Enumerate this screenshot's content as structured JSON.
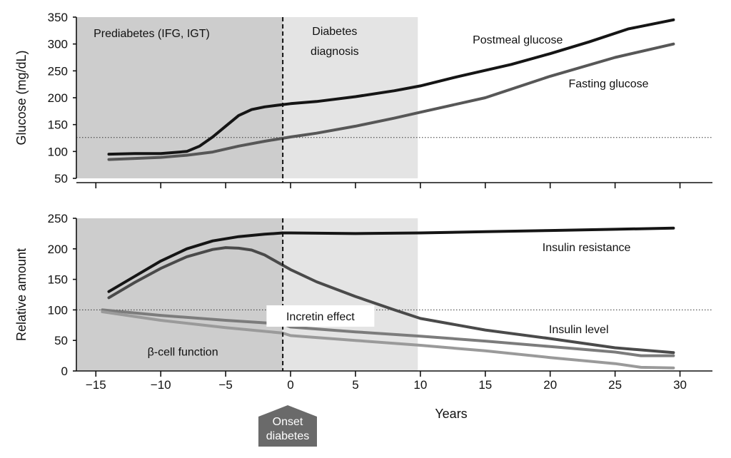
{
  "chart_data": [
    {
      "type": "line",
      "ylabel": "Glucose (mg/dL)",
      "xlabel": "",
      "xlim": [
        -16.5,
        32.5
      ],
      "ylim": [
        50,
        350
      ],
      "y_ticks": [
        50,
        100,
        150,
        200,
        250,
        300,
        350
      ],
      "x_ticks": [
        -15,
        -10,
        -5,
        0,
        5,
        10,
        15,
        20,
        25,
        30
      ],
      "threshold": 126,
      "regions": [
        {
          "x_from": -16.5,
          "x_to": -0.6,
          "color": "#cdcdcd",
          "label_lines": [
            "Prediabetes (IFG, IGT)"
          ],
          "label_x": -10.7,
          "label_y": 313
        },
        {
          "x_from": -0.6,
          "x_to": 9.8,
          "color": "#e4e4e4",
          "label_lines": [
            "Diabetes",
            "diagnosis"
          ],
          "label_x": 3.4,
          "label_y": 317
        }
      ],
      "series": [
        {
          "name": "Postmeal glucose",
          "color": "#151515",
          "x": [
            -14,
            -12,
            -10,
            -8,
            -7,
            -6,
            -5,
            -4,
            -3,
            -2,
            -1,
            0,
            2,
            5,
            8,
            10,
            13,
            17,
            20,
            23,
            26,
            29.5
          ],
          "y": [
            95,
            96,
            96,
            100,
            110,
            127,
            147,
            167,
            178,
            183,
            186,
            189,
            193,
            202,
            213,
            222,
            240,
            262,
            282,
            304,
            328,
            345
          ]
        },
        {
          "name": "Fasting glucose",
          "color": "#575757",
          "x": [
            -14,
            -12,
            -10,
            -8,
            -6,
            -4,
            -2,
            0,
            2,
            5,
            8,
            10,
            15,
            20,
            25,
            29.5
          ],
          "y": [
            85,
            87,
            89,
            93,
            99,
            110,
            119,
            127,
            134,
            147,
            162,
            173,
            200,
            240,
            275,
            300
          ]
        }
      ],
      "annotations": [
        {
          "text": "Postmeal glucose",
          "x": 17.5,
          "y": 309
        },
        {
          "text": "Fasting glucose",
          "x": 24.5,
          "y": 227
        }
      ]
    },
    {
      "type": "line",
      "ylabel": "Relative amount",
      "xlabel": "Years",
      "xlim": [
        -16.5,
        32.5
      ],
      "ylim": [
        0,
        250
      ],
      "y_ticks": [
        0,
        50,
        100,
        150,
        200,
        250
      ],
      "x_ticks": [
        -15,
        -10,
        -5,
        0,
        5,
        10,
        15,
        20,
        25,
        30
      ],
      "threshold": 100,
      "regions": [
        {
          "x_from": -16.5,
          "x_to": -0.6,
          "color": "#cdcdcd"
        },
        {
          "x_from": -0.6,
          "x_to": 9.8,
          "color": "#e4e4e4"
        }
      ],
      "series": [
        {
          "name": "Insulin resistance",
          "color": "#151515",
          "x": [
            -14,
            -12,
            -10,
            -8,
            -6,
            -4,
            -2,
            -0.6,
            0,
            5,
            10,
            15,
            20,
            25,
            29.5
          ],
          "y": [
            130,
            155,
            180,
            200,
            213,
            220,
            224,
            226,
            226,
            225,
            226,
            228,
            230,
            232,
            234
          ]
        },
        {
          "name": "Insulin level",
          "color": "#4a4a4a",
          "x": [
            -14,
            -12,
            -10,
            -8,
            -6,
            -5,
            -4,
            -3,
            -2,
            -1,
            0,
            2,
            5,
            8,
            10,
            15,
            20,
            25,
            29.5
          ],
          "y": [
            120,
            145,
            168,
            187,
            199,
            202,
            201,
            198,
            190,
            178,
            166,
            146,
            122,
            100,
            86,
            67,
            53,
            38,
            30
          ]
        },
        {
          "name": "Incretin effect",
          "color": "#7c7c7c",
          "x": [
            -14.5,
            -10,
            -5,
            -0.6,
            0,
            5,
            10,
            15,
            20,
            25,
            27,
            29.5
          ],
          "y": [
            100,
            91,
            83,
            77,
            72,
            64,
            57,
            49,
            40,
            31,
            25,
            25
          ]
        },
        {
          "name": "β-cell function",
          "color": "#9a9a9a",
          "x": [
            -14.5,
            -10,
            -5,
            -0.6,
            0,
            5,
            10,
            15,
            20,
            25,
            27,
            29.5
          ],
          "y": [
            97,
            83,
            71,
            62,
            58,
            50,
            42,
            33,
            22,
            12,
            6,
            5
          ]
        }
      ],
      "annotations": [
        {
          "text": "Insulin resistance",
          "x": 22.8,
          "y": 203,
          "boxed": false
        },
        {
          "text": "Insulin level",
          "x": 22.2,
          "y": 69,
          "boxed": false
        },
        {
          "text": "Incretin effect",
          "x": 2.3,
          "y": 90,
          "boxed": true
        },
        {
          "text": "β-cell function",
          "x": -8.3,
          "y": 32,
          "boxed": false
        }
      ]
    }
  ],
  "marker": {
    "x": -0.6,
    "lines": [
      "Onset",
      "diabetes"
    ],
    "color": "#6a6a6a"
  }
}
